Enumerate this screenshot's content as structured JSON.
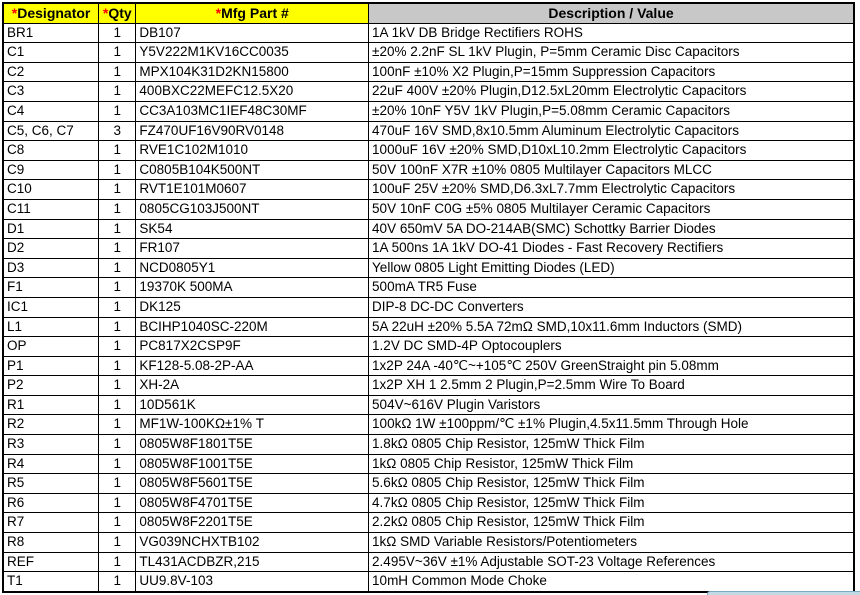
{
  "table": {
    "required_marker": "*",
    "headers": [
      {
        "label": "Designator",
        "required": true
      },
      {
        "label": "Qty",
        "required": true
      },
      {
        "label": "Mfg Part #",
        "required": true
      },
      {
        "label": "Description / Value",
        "required": false
      }
    ],
    "rows": [
      {
        "designator": "BR1",
        "qty": "1",
        "mfg": "DB107",
        "desc": "1A 1kV DB Bridge Rectifiers ROHS"
      },
      {
        "designator": "C1",
        "qty": "1",
        "mfg": "Y5V222M1KV16CC0035",
        "desc": "±20% 2.2nF SL 1kV Plugin, P=5mm Ceramic Disc Capacitors"
      },
      {
        "designator": "C2",
        "qty": "1",
        "mfg": "MPX104K31D2KN15800",
        "desc": "100nF ±10% X2 Plugin,P=15mm Suppression Capacitors"
      },
      {
        "designator": "C3",
        "qty": "1",
        "mfg": "400BXC22MEFC12.5X20",
        "desc": "22uF 400V ±20% Plugin,D12.5xL20mm Electrolytic Capacitors"
      },
      {
        "designator": "C4",
        "qty": "1",
        "mfg": "CC3A103MC1IEF48C30MF",
        "desc": "±20% 10nF Y5V 1kV Plugin,P=5.08mm Ceramic Capacitors"
      },
      {
        "designator": "C5, C6, C7",
        "qty": "3",
        "mfg": "FZ470UF16V90RV0148",
        "desc": "470uF 16V SMD,8x10.5mm Aluminum Electrolytic Capacitors"
      },
      {
        "designator": "C8",
        "qty": "1",
        "mfg": "RVE1C102M1010",
        "desc": "1000uF 16V ±20% SMD,D10xL10.2mm Electrolytic Capacitors"
      },
      {
        "designator": "C9",
        "qty": "1",
        "mfg": "C0805B104K500NT",
        "desc": "50V 100nF X7R ±10% 0805 Multilayer Capacitors MLCC"
      },
      {
        "designator": "C10",
        "qty": "1",
        "mfg": "RVT1E101M0607",
        "desc": "100uF 25V ±20% SMD,D6.3xL7.7mm Electrolytic Capacitors"
      },
      {
        "designator": "C11",
        "qty": "1",
        "mfg": "0805CG103J500NT",
        "desc": "50V 10nF C0G ±5% 0805 Multilayer Ceramic Capacitors"
      },
      {
        "designator": "D1",
        "qty": "1",
        "mfg": "SK54",
        "desc": "40V 650mV 5A DO-214AB(SMC) Schottky Barrier Diodes"
      },
      {
        "designator": "D2",
        "qty": "1",
        "mfg": "FR107",
        "desc": "1A 500ns 1A 1kV DO-41 Diodes - Fast Recovery Rectifiers"
      },
      {
        "designator": "D3",
        "qty": "1",
        "mfg": "NCD0805Y1",
        "desc": "Yellow 0805 Light Emitting Diodes (LED)"
      },
      {
        "designator": "F1",
        "qty": "1",
        "mfg": "19370K 500MA",
        "desc": "500mA TR5 Fuse"
      },
      {
        "designator": "IC1",
        "qty": "1",
        "mfg": "DK125",
        "desc": "DIP-8 DC-DC Converters"
      },
      {
        "designator": "L1",
        "qty": "1",
        "mfg": "BCIHP1040SC-220M",
        "desc": "5A 22uH ±20% 5.5A 72mΩ SMD,10x11.6mm Inductors (SMD)"
      },
      {
        "designator": "OP",
        "qty": "1",
        "mfg": "PC817X2CSP9F",
        "desc": "1.2V DC SMD-4P Optocouplers"
      },
      {
        "designator": "P1",
        "qty": "1",
        "mfg": "KF128-5.08-2P-AA",
        "desc": "1x2P 24A -40℃~+105℃ 250V GreenStraight pin 5.08mm"
      },
      {
        "designator": "P2",
        "qty": "1",
        "mfg": "XH-2A",
        "desc": "1x2P XH 1 2.5mm 2 Plugin,P=2.5mm Wire To Board"
      },
      {
        "designator": "R1",
        "qty": "1",
        "mfg": "10D561K",
        "desc": "504V~616V Plugin Varistors"
      },
      {
        "designator": "R2",
        "qty": "1",
        "mfg": "MF1W-100KΩ±1% T",
        "desc": "100kΩ 1W ±100ppm/℃ ±1% Plugin,4.5x11.5mm Through Hole"
      },
      {
        "designator": "R3",
        "qty": "1",
        "mfg": "0805W8F1801T5E",
        "desc": "1.8kΩ 0805 Chip Resistor, 125mW Thick Film"
      },
      {
        "designator": "R4",
        "qty": "1",
        "mfg": "0805W8F1001T5E",
        "desc": "1kΩ 0805 Chip Resistor, 125mW Thick Film"
      },
      {
        "designator": "R5",
        "qty": "1",
        "mfg": "0805W8F5601T5E",
        "desc": "5.6kΩ 0805 Chip Resistor, 125mW Thick Film"
      },
      {
        "designator": "R6",
        "qty": "1",
        "mfg": "0805W8F4701T5E",
        "desc": "4.7kΩ 0805 Chip Resistor, 125mW Thick Film"
      },
      {
        "designator": "R7",
        "qty": "1",
        "mfg": "0805W8F2201T5E",
        "desc": "2.2kΩ 0805 Chip Resistor, 125mW Thick Film"
      },
      {
        "designator": "R8",
        "qty": "1",
        "mfg": "VG039NCHXTB102",
        "desc": "1kΩ SMD Variable Resistors/Potentiometers"
      },
      {
        "designator": "REF",
        "qty": "1",
        "mfg": "TL431ACDBZR,215",
        "desc": "2.495V~36V ±1% Adjustable SOT-23 Voltage References"
      },
      {
        "designator": "T1",
        "qty": "1",
        "mfg": "UU9.8V-103",
        "desc": "10mH Common Mode Choke"
      }
    ]
  },
  "colors": {
    "required_header_bg": "#FFFF00",
    "description_header_bg": "#C8C8C8",
    "required_marker_color": "#FF0000",
    "grid_border": "#000000",
    "partial_widget_bg": "#C2DAE6",
    "partial_widget_edge": "#7FA9C0"
  }
}
